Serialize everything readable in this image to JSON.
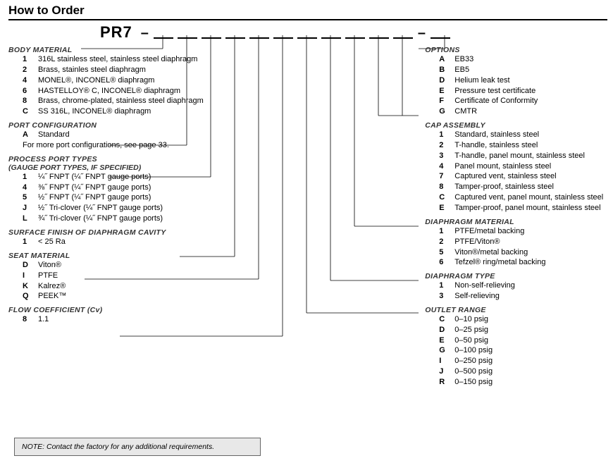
{
  "title": "How to Order",
  "partPrefix": "PR7",
  "left": [
    {
      "title": "BODY MATERIAL",
      "entries": [
        {
          "code": "1",
          "desc": "316L stainless steel, stainless steel diaphragm"
        },
        {
          "code": "2",
          "desc": "Brass, stainles steel diaphragm"
        },
        {
          "code": "4",
          "desc": "MONEL®, INCONEL® diaphragm"
        },
        {
          "code": "6",
          "desc": "HASTELLOY® C, INCONEL® diaphragm"
        },
        {
          "code": "8",
          "desc": "Brass, chrome-plated, stainless steel diaphragm"
        },
        {
          "code": "C",
          "desc": "SS 316L, INCONEL® diaphragm"
        }
      ]
    },
    {
      "title": "PORT CONFIGURATION",
      "entries": [
        {
          "code": "A",
          "desc": "Standard"
        }
      ],
      "note": "For more port configurations, see page 33."
    },
    {
      "title": "PROCESS PORT TYPES",
      "sub": "(GAUGE PORT TYPES, IF SPECIFIED)",
      "entries": [
        {
          "code": "1",
          "desc": "¼˝ FNPT (¼˝ FNPT gauge ports)"
        },
        {
          "code": "4",
          "desc": "⅜˝ FNPT (¼˝ FNPT gauge ports)"
        },
        {
          "code": "5",
          "desc": "½˝ FNPT (¼˝ FNPT gauge ports)"
        },
        {
          "code": "J",
          "desc": "½˝ Tri-clover (¼˝ FNPT gauge ports)"
        },
        {
          "code": "L",
          "desc": "¾˝ Tri-clover (¼˝ FNPT gauge ports)"
        }
      ]
    },
    {
      "title": "SURFACE FINISH OF DIAPHRAGM CAVITY",
      "entries": [
        {
          "code": "1",
          "desc": "< 25 Ra"
        }
      ]
    },
    {
      "title": "SEAT MATERIAL",
      "entries": [
        {
          "code": "D",
          "desc": "Viton®"
        },
        {
          "code": "I",
          "desc": "PTFE"
        },
        {
          "code": "K",
          "desc": "Kalrez®"
        },
        {
          "code": "Q",
          "desc": "PEEK™"
        }
      ]
    },
    {
      "title": "FLOW COEFFICIENT (Cv)",
      "entries": [
        {
          "code": "8",
          "desc": "1.1"
        }
      ]
    }
  ],
  "right": [
    {
      "title": "OPTIONS",
      "entries": [
        {
          "code": "A",
          "desc": "EB33"
        },
        {
          "code": "B",
          "desc": "EB5"
        },
        {
          "code": "D",
          "desc": "Helium leak test"
        },
        {
          "code": "E",
          "desc": "Pressure test certificate"
        },
        {
          "code": "F",
          "desc": "Certificate of Conformity"
        },
        {
          "code": "G",
          "desc": "CMTR"
        }
      ]
    },
    {
      "title": "CAP ASSEMBLY",
      "entries": [
        {
          "code": "1",
          "desc": "Standard, stainless steel"
        },
        {
          "code": "2",
          "desc": "T-handle, stainless steel"
        },
        {
          "code": "3",
          "desc": "T-handle, panel mount, stainless steel"
        },
        {
          "code": "4",
          "desc": "Panel mount, stainless steel"
        },
        {
          "code": "7",
          "desc": "Captured vent, stainless steel"
        },
        {
          "code": "8",
          "desc": "Tamper-proof, stainless steel"
        },
        {
          "code": "C",
          "desc": "Captured vent, panel mount, stainless steel"
        },
        {
          "code": "E",
          "desc": "Tamper-proof, panel mount, stainless steel"
        }
      ]
    },
    {
      "title": "DIAPHRAGM MATERIAL",
      "entries": [
        {
          "code": "1",
          "desc": "PTFE/metal backing"
        },
        {
          "code": "2",
          "desc": "PTFE/Viton®"
        },
        {
          "code": "5",
          "desc": "Viton®/metal backing"
        },
        {
          "code": "6",
          "desc": "Tefzel® ring/metal backing"
        }
      ]
    },
    {
      "title": "DIAPHRAGM TYPE",
      "entries": [
        {
          "code": "1",
          "desc": "Non-self-relieving"
        },
        {
          "code": "3",
          "desc": "Self-relieving"
        }
      ]
    },
    {
      "title": "OUTLET RANGE",
      "entries": [
        {
          "code": "C",
          "desc": "0–10 psig"
        },
        {
          "code": "D",
          "desc": "0–25 psig"
        },
        {
          "code": "E",
          "desc": "0–50 psig"
        },
        {
          "code": "G",
          "desc": "0–100 psig"
        },
        {
          "code": "I",
          "desc": "0–250 psig"
        },
        {
          "code": "J",
          "desc": "0–500 psig"
        },
        {
          "code": "R",
          "desc": "0–150 psig"
        }
      ]
    }
  ],
  "noteBox": "NOTE: Contact the factory for any additional requirements.",
  "slotXs": [
    231,
    265,
    299,
    333,
    367,
    401,
    435,
    469,
    503,
    537,
    571,
    631
  ],
  "slotTopY": 50,
  "leftTitleYs": [
    69,
    206,
    251,
    364,
    396,
    477
  ],
  "leftTitleEndXs": [
    115,
    155,
    155,
    255,
    120,
    170
  ],
  "rightTitleYs": [
    69,
    164,
    321,
    398,
    444
  ],
  "rightTitleStartX": 594
}
